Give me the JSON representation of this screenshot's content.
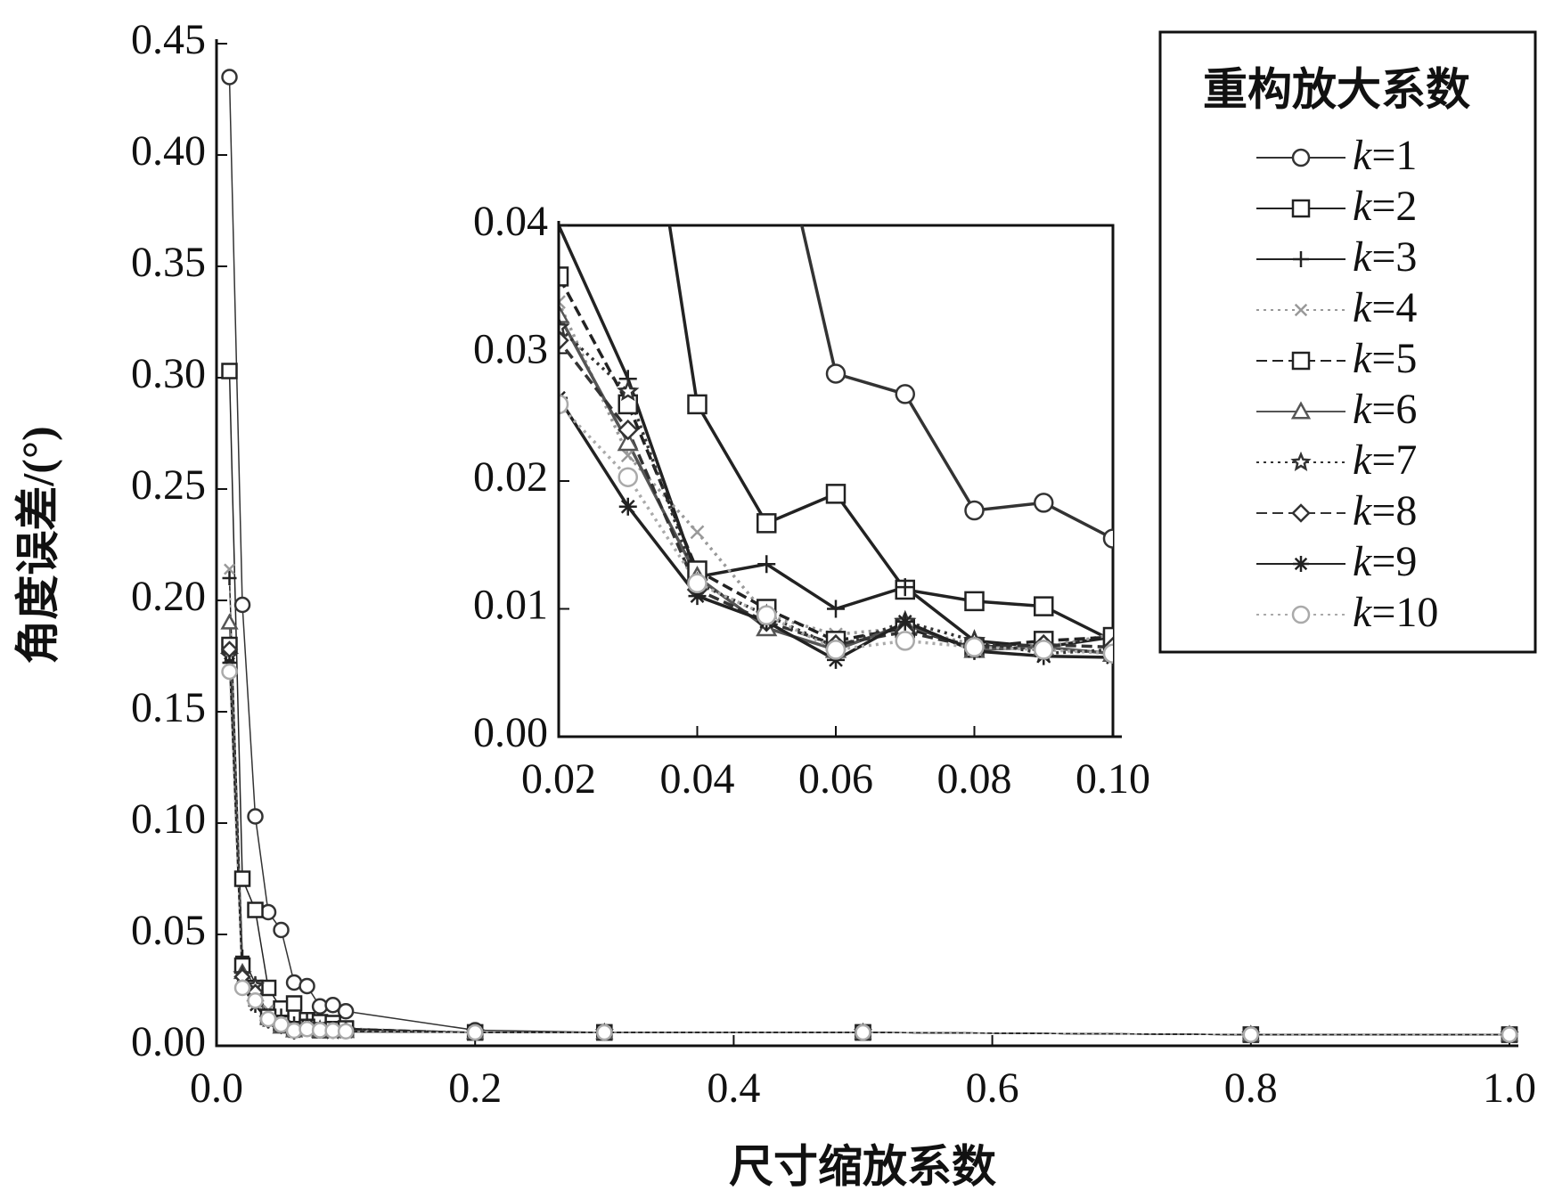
{
  "chart_data": {
    "type": "line",
    "x_label": "尺寸缩放系数",
    "y_label": "角度误差/(°)",
    "legend_title": "重构放大系数",
    "legend": "upper right",
    "xlim": [
      0,
      1.0
    ],
    "ylim": [
      0,
      0.45
    ],
    "xticks": [
      {
        "value": 0,
        "label": "0.0"
      },
      0.2,
      0.4,
      0.6,
      0.8,
      {
        "value": 1.0,
        "label": "1.0"
      }
    ],
    "yticks": [
      {
        "value": 0,
        "label": "0.00"
      },
      0.05,
      {
        "value": 0.1,
        "label": "0.10"
      },
      0.15,
      {
        "value": 0.2,
        "label": "0.20"
      },
      0.25,
      {
        "value": 0.3,
        "label": "0.30"
      },
      0.35,
      {
        "value": 0.4,
        "label": "0.40"
      },
      0.45
    ],
    "inset": {
      "xlim": [
        0.02,
        0.1
      ],
      "ylim": [
        0,
        0.04
      ],
      "xticks": [
        0.02,
        0.04,
        0.06,
        0.08,
        {
          "value": 0.1,
          "label": "0.10"
        }
      ],
      "yticks": [
        {
          "value": 0,
          "label": "0.00"
        },
        0.01,
        0.02,
        0.03,
        0.04
      ]
    },
    "x": [
      0.01,
      0.02,
      0.03,
      0.04,
      0.05,
      0.06,
      0.07,
      0.08,
      0.09,
      0.1,
      0.2,
      0.3,
      0.5,
      0.8,
      1.0
    ],
    "series": [
      {
        "name": "k=1",
        "color": "#333333",
        "marker": "circle",
        "dash": "solid",
        "values": [
          0.435,
          0.198,
          0.103,
          0.06,
          0.052,
          0.0284,
          0.0268,
          0.0177,
          0.0183,
          0.0155,
          0.007,
          0.006,
          0.006,
          0.005,
          0.005
        ]
      },
      {
        "name": "k=2",
        "color": "#222222",
        "marker": "square",
        "dash": "solid",
        "values": [
          0.303,
          0.075,
          0.061,
          0.026,
          0.0167,
          0.019,
          0.0115,
          0.0106,
          0.0102,
          0.0075,
          0.006,
          0.006,
          0.006,
          0.005,
          0.005
        ]
      },
      {
        "name": "k=3",
        "color": "#222222",
        "marker": "plus",
        "dash": "solid",
        "values": [
          0.21,
          0.04,
          0.028,
          0.0125,
          0.0135,
          0.01,
          0.0117,
          0.0075,
          0.007,
          0.0078,
          0.006,
          0.006,
          0.006,
          0.005,
          0.005
        ]
      },
      {
        "name": "k=4",
        "color": "#999999",
        "marker": "cross",
        "dash": "dotted",
        "values": [
          0.214,
          0.034,
          0.022,
          0.016,
          0.0095,
          0.008,
          0.0085,
          0.0072,
          0.007,
          0.008,
          0.006,
          0.006,
          0.006,
          0.005,
          0.005
        ]
      },
      {
        "name": "k=5",
        "color": "#222222",
        "marker": "square",
        "dash": "dashed",
        "values": [
          0.18,
          0.036,
          0.026,
          0.013,
          0.01,
          0.0075,
          0.0085,
          0.007,
          0.0075,
          0.0078,
          0.006,
          0.006,
          0.006,
          0.005,
          0.005
        ]
      },
      {
        "name": "k=6",
        "color": "#555555",
        "marker": "triangle",
        "dash": "solid",
        "values": [
          0.19,
          0.033,
          0.023,
          0.0125,
          0.0085,
          0.0068,
          0.0088,
          0.0068,
          0.007,
          0.0065,
          0.006,
          0.006,
          0.006,
          0.005,
          0.005
        ]
      },
      {
        "name": "k=7",
        "color": "#333333",
        "marker": "star",
        "dash": "dotted",
        "values": [
          0.175,
          0.032,
          0.027,
          0.012,
          0.0095,
          0.007,
          0.009,
          0.0075,
          0.0065,
          0.0068,
          0.006,
          0.006,
          0.006,
          0.005,
          0.005
        ]
      },
      {
        "name": "k=8",
        "color": "#333333",
        "marker": "diamond",
        "dash": "dashed",
        "values": [
          0.178,
          0.031,
          0.024,
          0.0115,
          0.009,
          0.0072,
          0.0082,
          0.007,
          0.0072,
          0.007,
          0.006,
          0.006,
          0.006,
          0.005,
          0.005
        ]
      },
      {
        "name": "k=9",
        "color": "#222222",
        "marker": "asterisk",
        "dash": "solid",
        "values": [
          0.172,
          0.0265,
          0.018,
          0.011,
          0.009,
          0.006,
          0.009,
          0.0067,
          0.0063,
          0.0062,
          0.006,
          0.006,
          0.006,
          0.005,
          0.005
        ]
      },
      {
        "name": "k=10",
        "color": "#aaaaaa",
        "marker": "circle",
        "dash": "dotted",
        "values": [
          0.168,
          0.026,
          0.0203,
          0.012,
          0.0095,
          0.0068,
          0.0075,
          0.007,
          0.0068,
          0.0065,
          0.006,
          0.006,
          0.006,
          0.005,
          0.005
        ]
      }
    ]
  }
}
